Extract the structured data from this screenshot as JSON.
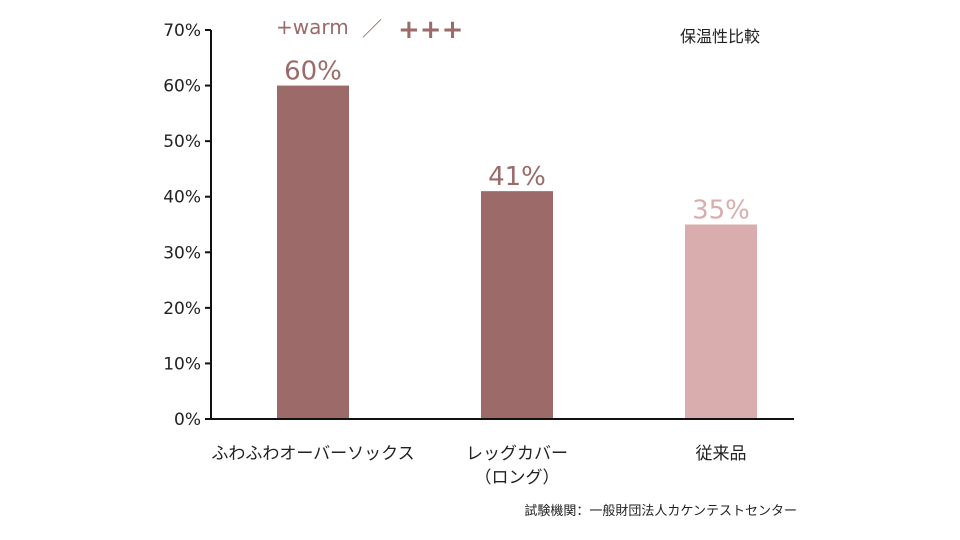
{
  "logo": {
    "brand": "+warm",
    "separator": "／",
    "mark": "+++"
  },
  "chart_data": {
    "type": "bar",
    "title": "保温性比較",
    "categories": [
      "ふわふわオーバーソックス",
      "レッグカバー\n（ロング）",
      "従来品"
    ],
    "values": [
      60,
      41,
      35
    ],
    "value_labels": [
      "60%",
      "41%",
      "35%"
    ],
    "ylim": [
      0,
      70
    ],
    "yticks": [
      0,
      10,
      20,
      30,
      40,
      50,
      60,
      70
    ],
    "ytick_labels": [
      "0%",
      "10%",
      "20%",
      "30%",
      "40%",
      "50%",
      "60%",
      "70%"
    ],
    "colors": [
      "#9b6a69",
      "#9b6a69",
      "#d9adad"
    ],
    "grid": false,
    "xlabel": "",
    "ylabel": ""
  },
  "source": "試験機関：一般財団法人カケンテストセンター"
}
